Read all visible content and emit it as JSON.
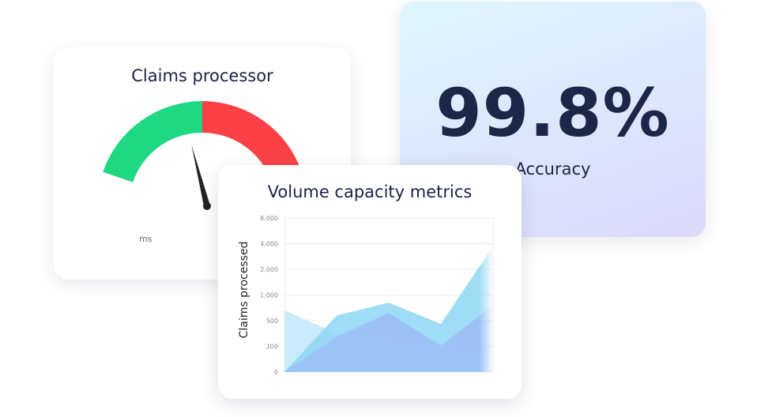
{
  "gauge": {
    "title": "Claims processor",
    "unit_label": "ms",
    "needle_fraction": 0.4,
    "colors": {
      "good": "#1fd882",
      "bad": "#fc4146",
      "needle": "#222222"
    }
  },
  "accuracy": {
    "value": "99.8%",
    "label": "Accuracy"
  },
  "chart": {
    "title": "Volume capacity metrics"
  },
  "chart_data": {
    "type": "area",
    "title": "Volume capacity metrics",
    "ylabel": "Claims processed",
    "xlabel": "",
    "y_ticks": [
      0,
      100,
      500,
      1000,
      2000,
      4000,
      8000
    ],
    "y_tick_labels": [
      "0",
      "100",
      "500",
      "1,000",
      "2,000",
      "4,000",
      "8,000"
    ],
    "ylim": [
      0,
      8000
    ],
    "grid": true,
    "x": [
      0,
      1,
      2,
      3,
      4
    ],
    "series": [
      {
        "values": [
          700,
          300,
          250,
          150,
          80
        ],
        "color": "#c9ebfb"
      },
      {
        "values": [
          0,
          600,
          850,
          450,
          3800
        ],
        "color": "#8ed6f3"
      },
      {
        "values": [
          0,
          250,
          650,
          110,
          800
        ],
        "color": "#9dbdf4"
      }
    ]
  }
}
